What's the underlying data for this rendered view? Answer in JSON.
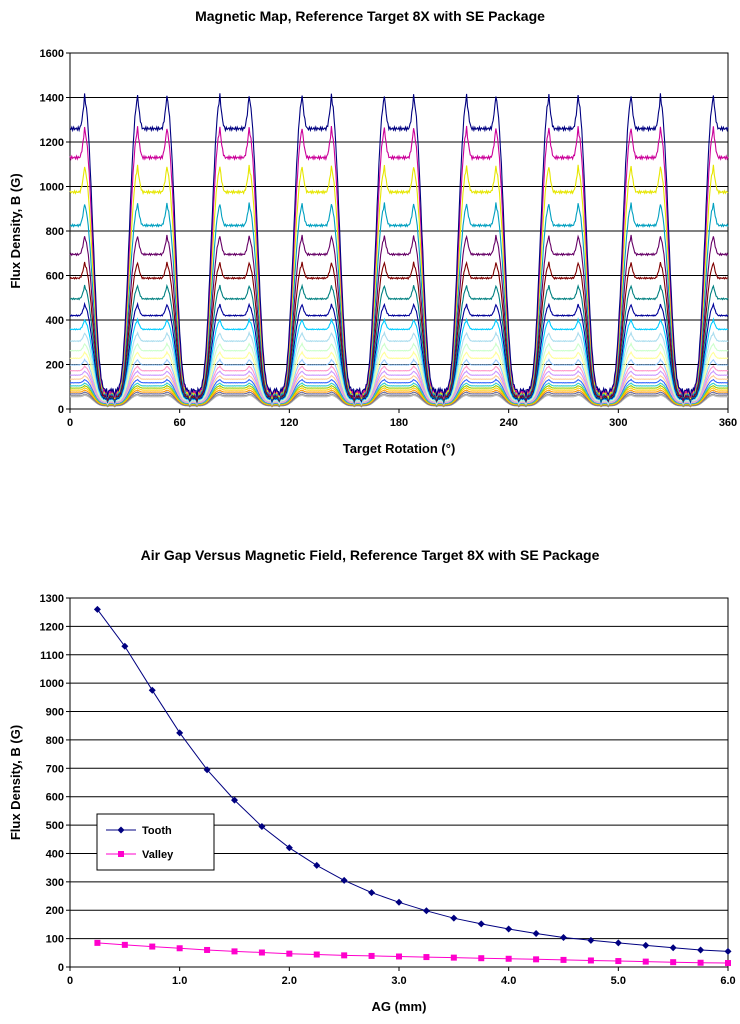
{
  "chart_data": [
    {
      "type": "line",
      "title": "Magnetic Map, Reference Target 8X with SE Package",
      "xlabel": "Target Rotation (°)",
      "ylabel": "Flux Density, B (G)",
      "xlim": [
        0,
        360
      ],
      "ylim": [
        0,
        1600
      ],
      "xticks": [
        "0",
        "60",
        "120",
        "180",
        "240",
        "300",
        "360"
      ],
      "yticks": [
        "0",
        "200",
        "400",
        "600",
        "800",
        "1000",
        "1200",
        "1400",
        "1600"
      ],
      "grid": "horizontal",
      "teeth_center_deg": [
        0,
        45,
        90,
        135,
        180,
        225,
        270,
        315,
        360
      ],
      "tooth_halfwidth_deg": 11,
      "series": [
        {
          "tooth": 1260,
          "valley": 85,
          "color": "#000080"
        },
        {
          "tooth": 1130,
          "valley": 78,
          "color": "#cc0099"
        },
        {
          "tooth": 975,
          "valley": 72,
          "color": "#e6e600"
        },
        {
          "tooth": 825,
          "valley": 66,
          "color": "#00a0c0"
        },
        {
          "tooth": 695,
          "valley": 60,
          "color": "#660066"
        },
        {
          "tooth": 588,
          "valley": 55,
          "color": "#800000"
        },
        {
          "tooth": 495,
          "valley": 51,
          "color": "#008080"
        },
        {
          "tooth": 420,
          "valley": 47,
          "color": "#000099"
        },
        {
          "tooth": 358,
          "valley": 44,
          "color": "#00ccff"
        },
        {
          "tooth": 305,
          "valley": 41,
          "color": "#aaddee"
        },
        {
          "tooth": 262,
          "valley": 39,
          "color": "#ccffcc"
        },
        {
          "tooth": 228,
          "valley": 37,
          "color": "#ffff99"
        },
        {
          "tooth": 198,
          "valley": 35,
          "color": "#99ccff"
        },
        {
          "tooth": 172,
          "valley": 33,
          "color": "#ff99cc"
        },
        {
          "tooth": 152,
          "valley": 31,
          "color": "#cc99ff"
        },
        {
          "tooth": 134,
          "valley": 29,
          "color": "#ffcc99"
        },
        {
          "tooth": 118,
          "valley": 27,
          "color": "#3366ff"
        },
        {
          "tooth": 104,
          "valley": 25,
          "color": "#33cccc"
        },
        {
          "tooth": 94,
          "valley": 23,
          "color": "#99cc00"
        },
        {
          "tooth": 85,
          "valley": 21,
          "color": "#ffcc00"
        },
        {
          "tooth": 76,
          "valley": 19,
          "color": "#ff9900"
        },
        {
          "tooth": 68,
          "valley": 17,
          "color": "#666699"
        },
        {
          "tooth": 60,
          "valley": 15,
          "color": "#969696"
        },
        {
          "tooth": 55,
          "valley": 14,
          "color": "#c0c0c0"
        }
      ]
    },
    {
      "type": "line",
      "title": "Air Gap Versus Magnetic Field, Reference Target 8X with SE Package",
      "xlabel": "AG (mm)",
      "ylabel": "Flux Density, B (G)",
      "xlim": [
        0,
        6
      ],
      "ylim": [
        0,
        1300
      ],
      "xticks": [
        "0",
        "1.0",
        "2.0",
        "3.0",
        "4.0",
        "5.0",
        "6.0"
      ],
      "yticks": [
        "0",
        "100",
        "200",
        "300",
        "400",
        "500",
        "600",
        "700",
        "800",
        "900",
        "1000",
        "1100",
        "1200",
        "1300"
      ],
      "grid": "horizontal",
      "legend": "left-middle",
      "x": [
        0.25,
        0.5,
        0.75,
        1.0,
        1.25,
        1.5,
        1.75,
        2.0,
        2.25,
        2.5,
        2.75,
        3.0,
        3.25,
        3.5,
        3.75,
        4.0,
        4.25,
        4.5,
        4.75,
        5.0,
        5.25,
        5.5,
        5.75,
        6.0
      ],
      "series": [
        {
          "name": "Tooth",
          "color": "#000080",
          "marker": "diamond",
          "values": [
            1260,
            1130,
            975,
            825,
            695,
            588,
            495,
            420,
            358,
            305,
            262,
            228,
            198,
            172,
            152,
            134,
            118,
            104,
            94,
            85,
            76,
            68,
            60,
            55
          ]
        },
        {
          "name": "Valley",
          "color": "#ff00cc",
          "marker": "square",
          "values": [
            85,
            78,
            72,
            66,
            60,
            55,
            51,
            47,
            44,
            41,
            39,
            37,
            35,
            33,
            31,
            29,
            27,
            25,
            23,
            21,
            19,
            17,
            15,
            14
          ]
        }
      ]
    }
  ]
}
